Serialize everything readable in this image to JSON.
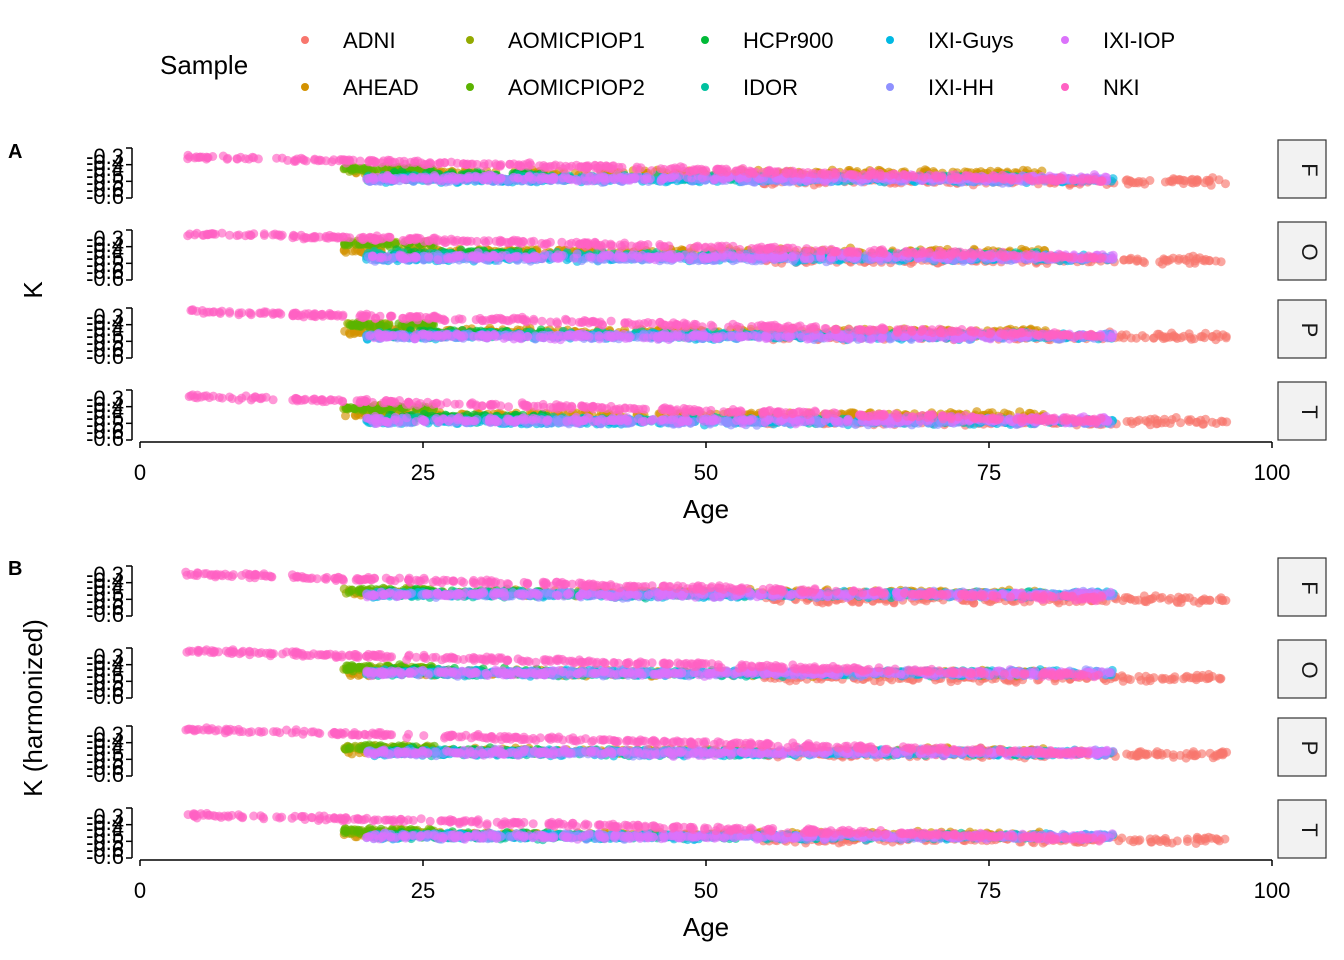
{
  "legend": {
    "title": "Sample",
    "items": [
      {
        "name": "ADNI",
        "color": "#F8766D"
      },
      {
        "name": "AHEAD",
        "color": "#D39200"
      },
      {
        "name": "AOMICPIOP1",
        "color": "#93AA00"
      },
      {
        "name": "AOMICPIOP2",
        "color": "#5BB300"
      },
      {
        "name": "HCPr900",
        "color": "#00BA38"
      },
      {
        "name": "IDOR",
        "color": "#00C19F"
      },
      {
        "name": "IXI-Guys",
        "color": "#00B9E3"
      },
      {
        "name": "IXI-HH",
        "color": "#8F91FF"
      },
      {
        "name": "IXI-IOP",
        "color": "#DB72FB"
      },
      {
        "name": "NKI",
        "color": "#FF61C3"
      }
    ]
  },
  "chart_data": [
    {
      "type": "scatter",
      "panel_tag": "A",
      "xlabel": "Age",
      "ylabel": "K",
      "xlim": [
        0,
        100
      ],
      "xticks": [
        "0",
        "25",
        "50",
        "75",
        "100"
      ],
      "ylim": [
        -0.6,
        -0.3
      ],
      "yticks": [
        "-0.3",
        "-0.4",
        "-0.5",
        "-0.6"
      ],
      "facets": [
        "F",
        "O",
        "P",
        "T"
      ],
      "series": [
        {
          "name": "ADNI",
          "age_range": [
            55,
            96
          ],
          "level_by_facet": [
            -0.5,
            -0.48,
            -0.47,
            -0.49
          ]
        },
        {
          "name": "AHEAD",
          "age_range": [
            18,
            80
          ],
          "level_by_facet": [
            -0.45,
            -0.43,
            -0.44,
            -0.45
          ]
        },
        {
          "name": "AOMICPIOP1",
          "age_range": [
            18,
            26
          ],
          "level_by_facet": [
            -0.43,
            -0.38,
            -0.4,
            -0.41
          ]
        },
        {
          "name": "AOMICPIOP2",
          "age_range": [
            18,
            26
          ],
          "level_by_facet": [
            -0.43,
            -0.38,
            -0.4,
            -0.41
          ]
        },
        {
          "name": "HCPr900",
          "age_range": [
            22,
            36
          ],
          "level_by_facet": [
            -0.46,
            -0.44,
            -0.45,
            -0.46
          ]
        },
        {
          "name": "IDOR",
          "age_range": [
            20,
            80
          ],
          "level_by_facet": [
            -0.48,
            -0.45,
            -0.46,
            -0.48
          ]
        },
        {
          "name": "IXI-Guys",
          "age_range": [
            20,
            86
          ],
          "level_by_facet": [
            -0.49,
            -0.47,
            -0.47,
            -0.49
          ]
        },
        {
          "name": "IXI-HH",
          "age_range": [
            20,
            86
          ],
          "level_by_facet": [
            -0.49,
            -0.47,
            -0.47,
            -0.49
          ]
        },
        {
          "name": "IXI-IOP",
          "age_range": [
            20,
            86
          ],
          "level_by_facet": [
            -0.48,
            -0.46,
            -0.47,
            -0.48
          ]
        },
        {
          "name": "NKI",
          "age_range": [
            4,
            85
          ],
          "level_by_facet": [
            -0.43,
            -0.4,
            -0.4,
            -0.42
          ]
        }
      ]
    },
    {
      "type": "scatter",
      "panel_tag": "B",
      "xlabel": "Age",
      "ylabel": "K (harmonized)",
      "xlim": [
        0,
        100
      ],
      "xticks": [
        "0",
        "25",
        "50",
        "75",
        "100"
      ],
      "ylim": [
        -0.6,
        -0.3
      ],
      "yticks": [
        "-0.3",
        "-0.4",
        "-0.5",
        "-0.6"
      ],
      "facets": [
        "F",
        "O",
        "P",
        "T"
      ],
      "series": [
        {
          "name": "ADNI",
          "age_range": [
            55,
            96
          ],
          "level_by_facet": [
            -0.5,
            -0.48,
            -0.47,
            -0.49
          ]
        },
        {
          "name": "AHEAD",
          "age_range": [
            18,
            80
          ],
          "level_by_facet": [
            -0.46,
            -0.45,
            -0.45,
            -0.46
          ]
        },
        {
          "name": "AOMICPIOP1",
          "age_range": [
            18,
            26
          ],
          "level_by_facet": [
            -0.45,
            -0.42,
            -0.43,
            -0.44
          ]
        },
        {
          "name": "AOMICPIOP2",
          "age_range": [
            18,
            26
          ],
          "level_by_facet": [
            -0.45,
            -0.42,
            -0.43,
            -0.44
          ]
        },
        {
          "name": "HCPr900",
          "age_range": [
            22,
            36
          ],
          "level_by_facet": [
            -0.46,
            -0.44,
            -0.45,
            -0.46
          ]
        },
        {
          "name": "IDOR",
          "age_range": [
            20,
            80
          ],
          "level_by_facet": [
            -0.47,
            -0.45,
            -0.46,
            -0.47
          ]
        },
        {
          "name": "IXI-Guys",
          "age_range": [
            20,
            86
          ],
          "level_by_facet": [
            -0.47,
            -0.45,
            -0.46,
            -0.47
          ]
        },
        {
          "name": "IXI-HH",
          "age_range": [
            20,
            86
          ],
          "level_by_facet": [
            -0.47,
            -0.45,
            -0.46,
            -0.47
          ]
        },
        {
          "name": "IXI-IOP",
          "age_range": [
            20,
            86
          ],
          "level_by_facet": [
            -0.47,
            -0.45,
            -0.46,
            -0.47
          ]
        },
        {
          "name": "NKI",
          "age_range": [
            4,
            85
          ],
          "level_by_facet": [
            -0.43,
            -0.4,
            -0.4,
            -0.42
          ]
        }
      ]
    }
  ]
}
